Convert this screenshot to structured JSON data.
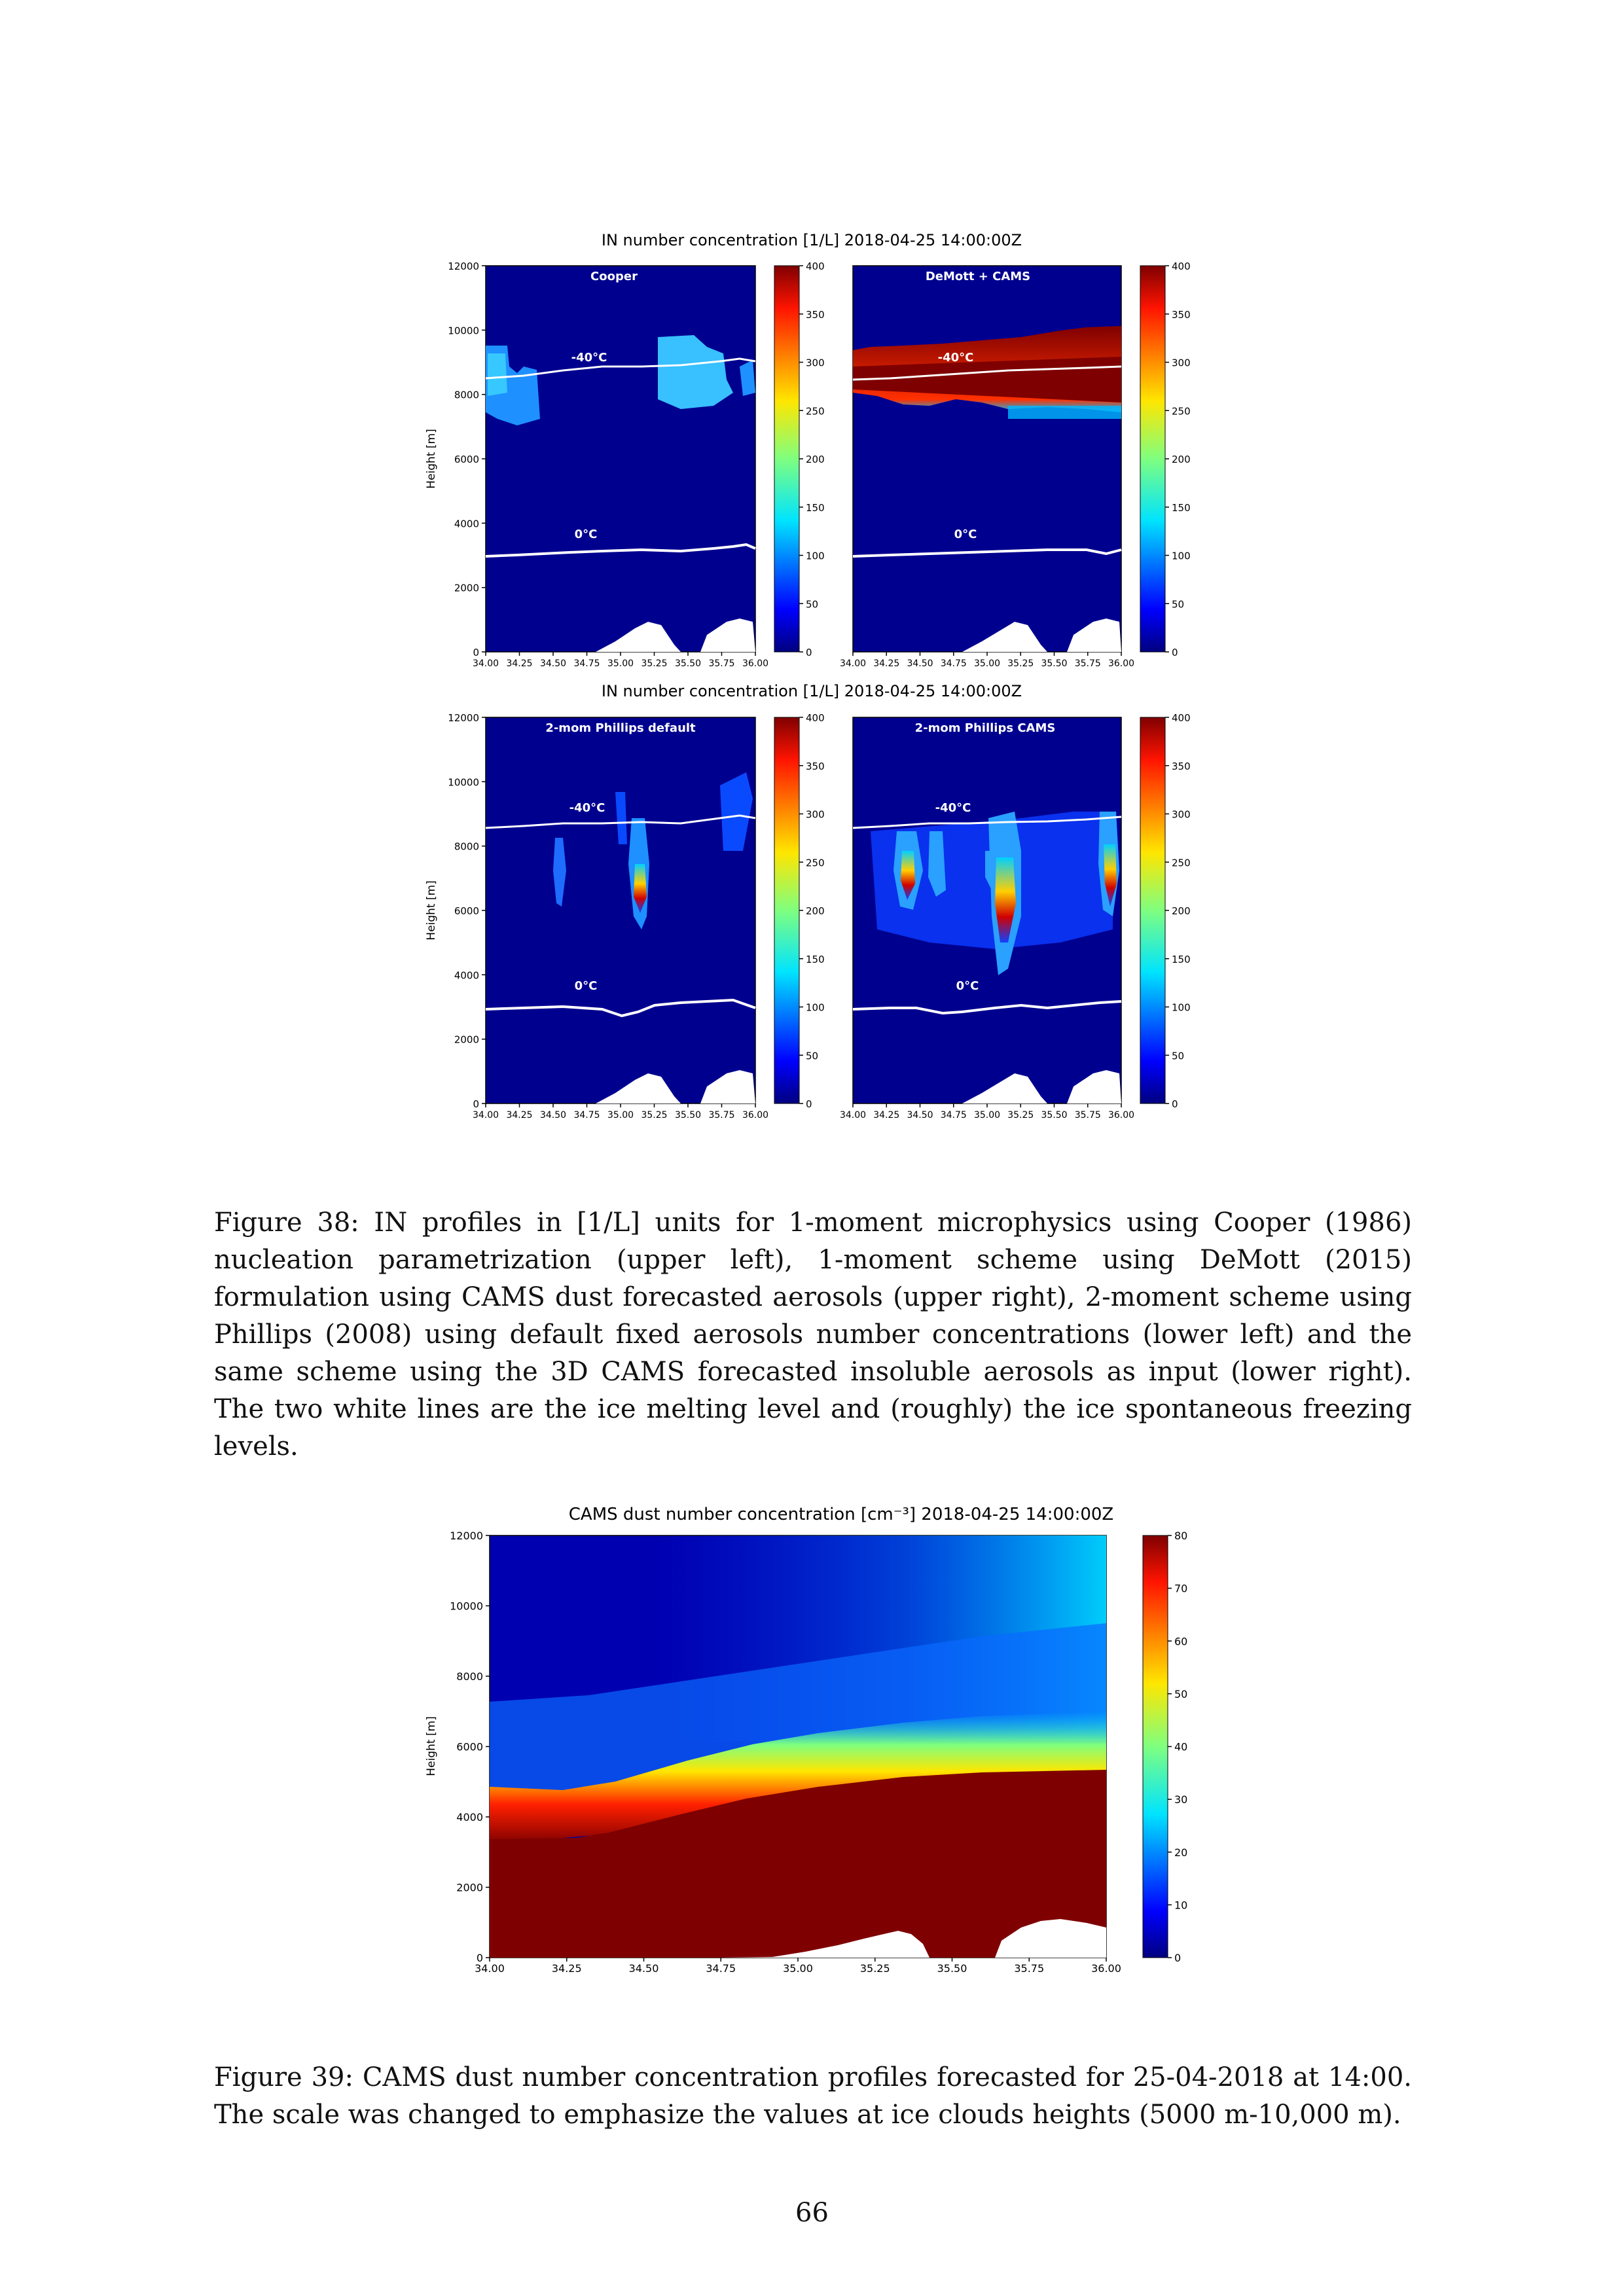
{
  "figure38": {
    "title_top": "IN number concentration [1/L] 2018-04-25 14:00:00Z",
    "title_bottom": "IN number concentration [1/L] 2018-04-25 14:00:00Z",
    "ylabel": "Height [m]",
    "yticks": [
      "0",
      "2000",
      "4000",
      "6000",
      "8000",
      "10000",
      "12000"
    ],
    "xticks": [
      "34.00",
      "34.25",
      "34.50",
      "34.75",
      "35.00",
      "35.25",
      "35.50",
      "35.75",
      "36.00"
    ],
    "colorbar_ticks": [
      "0",
      "50",
      "100",
      "150",
      "200",
      "250",
      "300",
      "350",
      "400"
    ],
    "panels": [
      {
        "name": "Cooper",
        "label_minus40": "-40°C",
        "label_zero": "0°C"
      },
      {
        "name": "DeMott + CAMS",
        "label_minus40": "-40°C",
        "label_zero": "0°C"
      },
      {
        "name": "2-mom Phillips default",
        "label_minus40": "-40°C",
        "label_zero": "0°C"
      },
      {
        "name": "2-mom Phillips CAMS",
        "label_minus40": "-40°C",
        "label_zero": "0°C"
      }
    ],
    "caption": "Figure 38: IN profiles in [1/L] units for 1-moment microphysics using Cooper (1986) nucleation parametrization (upper left), 1-moment scheme using DeMott (2015) formulation using CAMS dust forecasted aerosols (upper right), 2-moment scheme using Phillips (2008) using default fixed aerosols number concentrations (lower left) and the same scheme using the 3D CAMS forecasted insoluble aerosols as input (lower right). The two white lines are the ice melting level and (roughly) the ice spontaneous freezing levels."
  },
  "figure39": {
    "title": "CAMS dust number concentration [cm⁻³] 2018-04-25 14:00:00Z",
    "ylabel": "Height [m]",
    "yticks": [
      "0",
      "2000",
      "4000",
      "6000",
      "8000",
      "10000",
      "12000"
    ],
    "xticks": [
      "34.00",
      "34.25",
      "34.50",
      "34.75",
      "35.00",
      "35.25",
      "35.50",
      "35.75",
      "36.00"
    ],
    "colorbar_ticks": [
      "0",
      "10",
      "20",
      "30",
      "40",
      "50",
      "60",
      "70",
      "80"
    ],
    "caption": "Figure 39: CAMS dust number concentration profiles forecasted for 25-04-2018 at 14:00. The scale was changed to emphasize the values at ice clouds heights (5000 m-10,000 m)."
  },
  "page_number": "66",
  "chart_data": [
    {
      "type": "heatmap",
      "title": "IN number concentration [1/L] 2018-04-25 14:00:00Z",
      "panels": [
        "Cooper",
        "DeMott + CAMS"
      ],
      "xlim": [
        34.0,
        36.0
      ],
      "ylim": [
        0,
        12000
      ],
      "ylabel": "Height [m]",
      "colorbar": {
        "min": 0,
        "max": 400,
        "colormap": "jet"
      },
      "annotations": [
        "-40°C",
        "0°C"
      ],
      "freezing_level_m": 8600,
      "melting_level_m": 3000
    },
    {
      "type": "heatmap",
      "title": "IN number concentration [1/L] 2018-04-25 14:00:00Z",
      "panels": [
        "2-mom Phillips default",
        "2-mom Phillips CAMS"
      ],
      "xlim": [
        34.0,
        36.0
      ],
      "ylim": [
        0,
        12000
      ],
      "ylabel": "Height [m]",
      "colorbar": {
        "min": 0,
        "max": 400,
        "colormap": "jet"
      },
      "annotations": [
        "-40°C",
        "0°C"
      ],
      "freezing_level_m": 8700,
      "melting_level_m": 3000
    },
    {
      "type": "heatmap",
      "title": "CAMS dust number concentration [cm⁻³] 2018-04-25 14:00:00Z",
      "xlim": [
        34.0,
        36.0
      ],
      "ylim": [
        0,
        12000
      ],
      "ylabel": "Height [m]",
      "colorbar": {
        "min": 0,
        "max": 80,
        "colormap": "jet"
      },
      "dust_top_height_m": [
        [
          34.0,
          3100
        ],
        [
          34.4,
          3300
        ],
        [
          35.0,
          4300
        ],
        [
          35.5,
          4900
        ],
        [
          36.0,
          5100
        ]
      ]
    }
  ]
}
